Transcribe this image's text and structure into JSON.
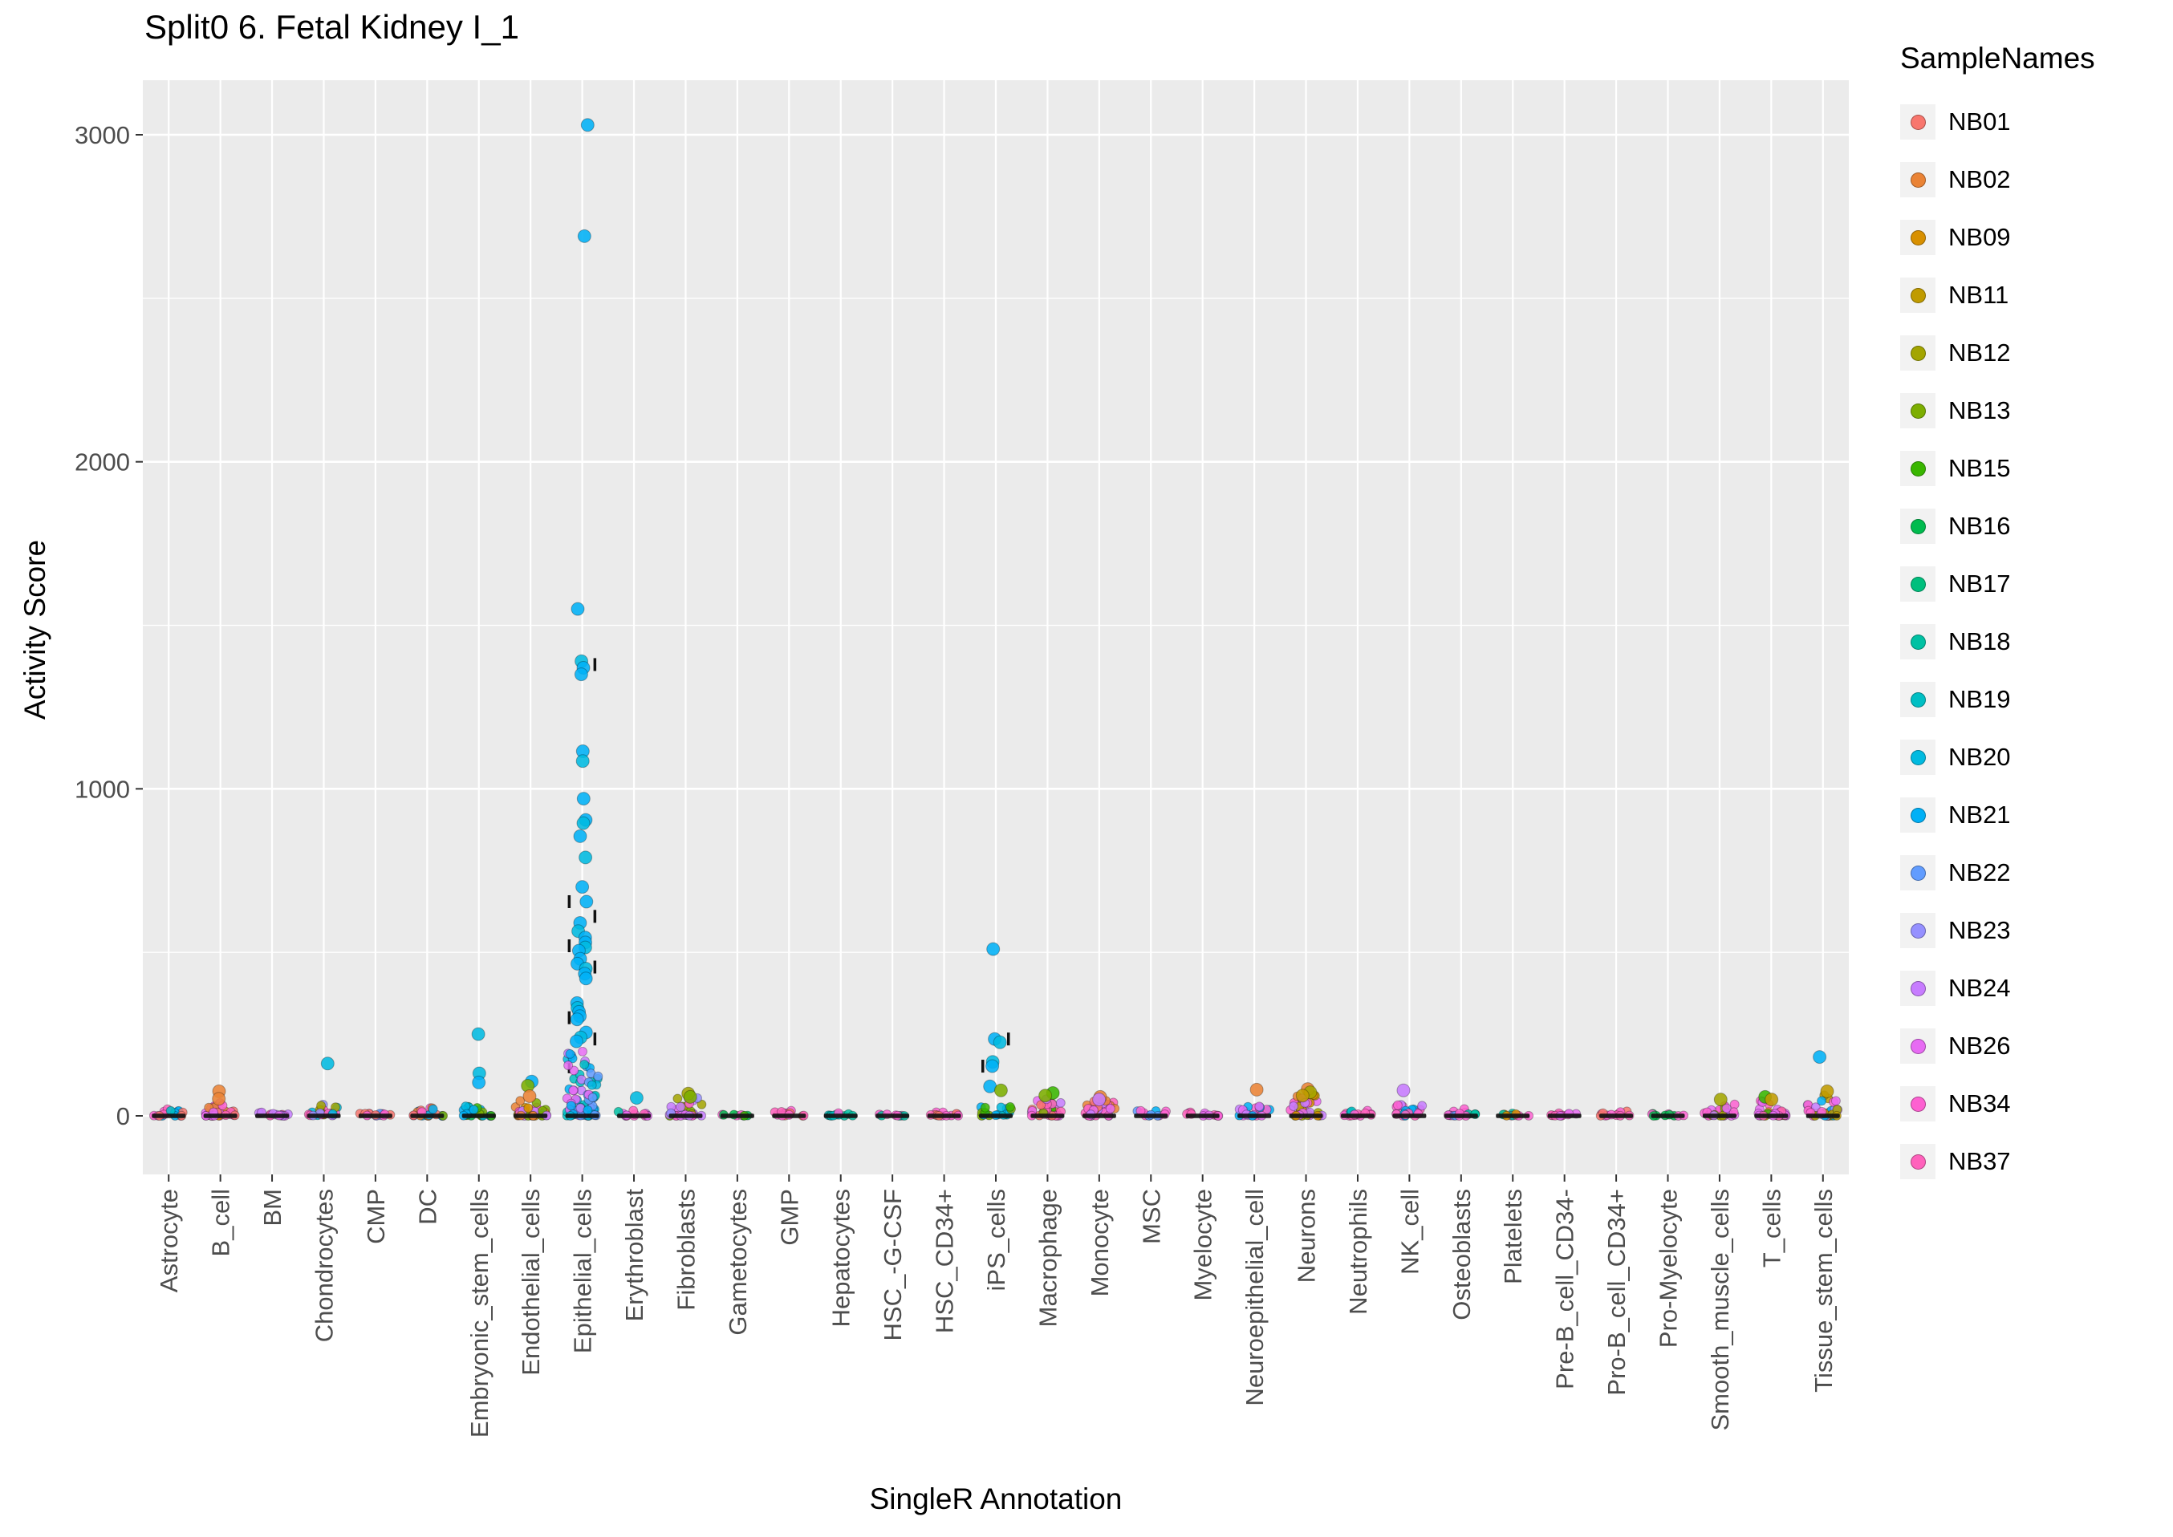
{
  "title": "Split0 6. Fetal Kidney I_1",
  "axes": {
    "x_title": "SingleR Annotation",
    "y_title": "Activity Score",
    "y_ticks": [
      0,
      1000,
      2000,
      3000
    ],
    "y_minor": [
      500,
      1500,
      2500
    ]
  },
  "legend": {
    "title": "SampleNames",
    "entries": [
      {
        "label": "NB01",
        "color": "#F8766D"
      },
      {
        "label": "NB02",
        "color": "#EA8335"
      },
      {
        "label": "NB09",
        "color": "#D89000"
      },
      {
        "label": "NB11",
        "color": "#C09B00"
      },
      {
        "label": "NB12",
        "color": "#A3A500"
      },
      {
        "label": "NB13",
        "color": "#7CAE00"
      },
      {
        "label": "NB15",
        "color": "#39B600"
      },
      {
        "label": "NB16",
        "color": "#00BB4E"
      },
      {
        "label": "NB17",
        "color": "#00BF7D"
      },
      {
        "label": "NB18",
        "color": "#00C1A3"
      },
      {
        "label": "NB19",
        "color": "#00BFC4"
      },
      {
        "label": "NB20",
        "color": "#00BAE0"
      },
      {
        "label": "NB21",
        "color": "#00B0F6"
      },
      {
        "label": "NB22",
        "color": "#619CFF"
      },
      {
        "label": "NB23",
        "color": "#9590FF"
      },
      {
        "label": "NB24",
        "color": "#C77CFF"
      },
      {
        "label": "NB26",
        "color": "#E76BF3"
      },
      {
        "label": "NB34",
        "color": "#FD61D1"
      },
      {
        "label": "NB37",
        "color": "#FF62BC"
      }
    ]
  },
  "panel": {
    "bg": "#EBEBEB",
    "grid": "#FFFFFF"
  },
  "chart_data": {
    "type": "scatter",
    "title": "Split0 6. Fetal Kidney I_1",
    "xlabel": "SingleR Annotation",
    "ylabel": "Activity Score",
    "ylim": [
      0,
      3030
    ],
    "y_ticks": [
      0,
      1000,
      2000,
      3000
    ],
    "legend_title": "SampleNames",
    "categories": [
      {
        "label": "Astrocyte",
        "cluster": {
          "n": 18,
          "max": 22,
          "samples": [
            "NB01",
            "NB34",
            "NB37",
            "NB19",
            "NB21",
            "NB17"
          ]
        },
        "outliers": [],
        "ticks": []
      },
      {
        "label": "B_cell",
        "cluster": {
          "n": 30,
          "max": 40,
          "samples": [
            "NB01",
            "NB02",
            "NB34",
            "NB37",
            "NB26",
            "NB09"
          ]
        },
        "outliers": [
          {
            "sample": "NB02",
            "y": 75
          },
          {
            "sample": "NB02",
            "y": 52
          }
        ],
        "ticks": []
      },
      {
        "label": "BM",
        "cluster": {
          "n": 14,
          "max": 12,
          "samples": [
            "NB26",
            "NB34",
            "NB37",
            "NB24"
          ]
        },
        "outliers": [],
        "ticks": []
      },
      {
        "label": "Chondrocytes",
        "cluster": {
          "n": 24,
          "max": 42,
          "samples": [
            "NB23",
            "NB24",
            "NB34",
            "NB37",
            "NB12",
            "NB20"
          ]
        },
        "outliers": [
          {
            "sample": "NB20",
            "y": 160
          }
        ],
        "ticks": []
      },
      {
        "label": "CMP",
        "cluster": {
          "n": 14,
          "max": 12,
          "samples": [
            "NB22",
            "NB23",
            "NB34",
            "NB01"
          ]
        },
        "outliers": [],
        "ticks": []
      },
      {
        "label": "DC",
        "cluster": {
          "n": 20,
          "max": 26,
          "samples": [
            "NB01",
            "NB02",
            "NB34",
            "NB21",
            "NB13"
          ]
        },
        "outliers": [],
        "ticks": []
      },
      {
        "label": "Embryonic_stem_cells",
        "cluster": {
          "n": 22,
          "max": 30,
          "samples": [
            "NB13",
            "NB15",
            "NB20",
            "NB21",
            "NB16"
          ]
        },
        "outliers": [
          {
            "sample": "NB20",
            "y": 250
          },
          {
            "sample": "NB20",
            "y": 130
          },
          {
            "sample": "NB21",
            "y": 102
          }
        ],
        "ticks": []
      },
      {
        "label": "Endothelial_cells",
        "cluster": {
          "n": 30,
          "max": 48,
          "samples": [
            "NB02",
            "NB09",
            "NB13",
            "NB21",
            "NB34",
            "NB24"
          ]
        },
        "outliers": [
          {
            "sample": "NB21",
            "y": 105
          },
          {
            "sample": "NB13",
            "y": 92
          },
          {
            "sample": "NB02",
            "y": 60
          }
        ],
        "ticks": []
      },
      {
        "label": "Epithelial_cells",
        "cluster": {
          "n": 80,
          "max": 200,
          "samples": [
            "NB21",
            "NB21",
            "NB21",
            "NB20",
            "NB19",
            "NB22",
            "NB24",
            "NB26"
          ]
        },
        "outliers": [
          {
            "sample": "NB21",
            "y": 3030
          },
          {
            "sample": "NB21",
            "y": 2690
          },
          {
            "sample": "NB21",
            "y": 1550
          },
          {
            "sample": "NB20",
            "y": 1390
          },
          {
            "sample": "NB21",
            "y": 1370
          },
          {
            "sample": "NB21",
            "y": 1350
          },
          {
            "sample": "NB21",
            "y": 1115
          },
          {
            "sample": "NB20",
            "y": 1085
          },
          {
            "sample": "NB21",
            "y": 970
          },
          {
            "sample": "NB21",
            "y": 905
          },
          {
            "sample": "NB20",
            "y": 895
          },
          {
            "sample": "NB21",
            "y": 855
          },
          {
            "sample": "NB20",
            "y": 790
          },
          {
            "sample": "NB21",
            "y": 700
          },
          {
            "sample": "NB21",
            "y": 655
          },
          {
            "sample": "NB21",
            "y": 590
          },
          {
            "sample": "NB20",
            "y": 565
          },
          {
            "sample": "NB21",
            "y": 545
          },
          {
            "sample": "NB21",
            "y": 530
          },
          {
            "sample": "NB20",
            "y": 515
          },
          {
            "sample": "NB21",
            "y": 505
          },
          {
            "sample": "NB21",
            "y": 480
          },
          {
            "sample": "NB21",
            "y": 465
          },
          {
            "sample": "NB20",
            "y": 450
          },
          {
            "sample": "NB21",
            "y": 435
          },
          {
            "sample": "NB21",
            "y": 420
          },
          {
            "sample": "NB21",
            "y": 345
          },
          {
            "sample": "NB20",
            "y": 330
          },
          {
            "sample": "NB21",
            "y": 318
          },
          {
            "sample": "NB21",
            "y": 305
          },
          {
            "sample": "NB21",
            "y": 295
          },
          {
            "sample": "NB21",
            "y": 255
          },
          {
            "sample": "NB20",
            "y": 240
          },
          {
            "sample": "NB21",
            "y": 228
          }
        ],
        "ticks": [
          1380,
          655,
          610,
          520,
          455,
          300,
          235,
          150
        ]
      },
      {
        "label": "Erythroblast",
        "cluster": {
          "n": 14,
          "max": 18,
          "samples": [
            "NB34",
            "NB37",
            "NB26",
            "NB18"
          ]
        },
        "outliers": [
          {
            "sample": "NB20",
            "y": 55
          }
        ],
        "ticks": []
      },
      {
        "label": "Fibroblasts",
        "cluster": {
          "n": 30,
          "max": 55,
          "samples": [
            "NB23",
            "NB24",
            "NB12",
            "NB13",
            "NB34",
            "NB26"
          ]
        },
        "outliers": [
          {
            "sample": "NB12",
            "y": 68
          },
          {
            "sample": "NB13",
            "y": 58
          }
        ],
        "ticks": []
      },
      {
        "label": "Gametocytes",
        "cluster": {
          "n": 8,
          "max": 8,
          "samples": [
            "NB15",
            "NB16",
            "NB34"
          ]
        },
        "outliers": [],
        "ticks": []
      },
      {
        "label": "GMP",
        "cluster": {
          "n": 14,
          "max": 16,
          "samples": [
            "NB01",
            "NB34",
            "NB37"
          ]
        },
        "outliers": [],
        "ticks": []
      },
      {
        "label": "Hepatocytes",
        "cluster": {
          "n": 10,
          "max": 10,
          "samples": [
            "NB18",
            "NB19",
            "NB34"
          ]
        },
        "outliers": [],
        "ticks": []
      },
      {
        "label": "HSC_-G-CSF",
        "cluster": {
          "n": 8,
          "max": 8,
          "samples": [
            "NB18",
            "NB34"
          ]
        },
        "outliers": [],
        "ticks": []
      },
      {
        "label": "HSC_CD34+",
        "cluster": {
          "n": 12,
          "max": 12,
          "samples": [
            "NB01",
            "NB34",
            "NB37"
          ]
        },
        "outliers": [],
        "ticks": []
      },
      {
        "label": "iPS_cells",
        "cluster": {
          "n": 20,
          "max": 28,
          "samples": [
            "NB13",
            "NB15",
            "NB20",
            "NB21"
          ]
        },
        "outliers": [
          {
            "sample": "NB21",
            "y": 510
          },
          {
            "sample": "NB21",
            "y": 235
          },
          {
            "sample": "NB20",
            "y": 225
          },
          {
            "sample": "NB20",
            "y": 165
          },
          {
            "sample": "NB21",
            "y": 152
          },
          {
            "sample": "NB21",
            "y": 90
          },
          {
            "sample": "NB13",
            "y": 78
          }
        ],
        "ticks": [
          235,
          152
        ]
      },
      {
        "label": "Macrophage",
        "cluster": {
          "n": 34,
          "max": 55,
          "samples": [
            "NB01",
            "NB34",
            "NB37",
            "NB26",
            "NB15",
            "NB13",
            "NB24"
          ]
        },
        "outliers": [
          {
            "sample": "NB15",
            "y": 70
          },
          {
            "sample": "NB13",
            "y": 62
          }
        ],
        "ticks": []
      },
      {
        "label": "Monocyte",
        "cluster": {
          "n": 34,
          "max": 48,
          "samples": [
            "NB01",
            "NB02",
            "NB34",
            "NB37",
            "NB24",
            "NB26"
          ]
        },
        "outliers": [
          {
            "sample": "NB02",
            "y": 58
          },
          {
            "sample": "NB24",
            "y": 50
          }
        ],
        "ticks": []
      },
      {
        "label": "MSC",
        "cluster": {
          "n": 12,
          "max": 18,
          "samples": [
            "NB21",
            "NB22",
            "NB34"
          ]
        },
        "outliers": [],
        "ticks": []
      },
      {
        "label": "Myelocyte",
        "cluster": {
          "n": 12,
          "max": 12,
          "samples": [
            "NB34",
            "NB37",
            "NB26"
          ]
        },
        "outliers": [],
        "ticks": []
      },
      {
        "label": "Neuroepithelial_cell",
        "cluster": {
          "n": 18,
          "max": 30,
          "samples": [
            "NB24",
            "NB26",
            "NB34",
            "NB21"
          ]
        },
        "outliers": [
          {
            "sample": "NB02",
            "y": 80
          }
        ],
        "ticks": []
      },
      {
        "label": "Neurons",
        "cluster": {
          "n": 34,
          "max": 70,
          "samples": [
            "NB02",
            "NB09",
            "NB11",
            "NB12",
            "NB34",
            "NB26",
            "NB24"
          ]
        },
        "outliers": [
          {
            "sample": "NB02",
            "y": 82
          },
          {
            "sample": "NB12",
            "y": 72
          },
          {
            "sample": "NB11",
            "y": 62
          }
        ],
        "ticks": []
      },
      {
        "label": "Neutrophils",
        "cluster": {
          "n": 14,
          "max": 16,
          "samples": [
            "NB19",
            "NB34",
            "NB37"
          ]
        },
        "outliers": [],
        "ticks": []
      },
      {
        "label": "NK_cell",
        "cluster": {
          "n": 20,
          "max": 35,
          "samples": [
            "NB24",
            "NB34",
            "NB37",
            "NB21"
          ]
        },
        "outliers": [
          {
            "sample": "NB24",
            "y": 78
          }
        ],
        "ticks": []
      },
      {
        "label": "Osteoblasts",
        "cluster": {
          "n": 14,
          "max": 25,
          "samples": [
            "NB22",
            "NB23",
            "NB18",
            "NB34"
          ]
        },
        "outliers": [],
        "ticks": []
      },
      {
        "label": "Platelets",
        "cluster": {
          "n": 10,
          "max": 8,
          "samples": [
            "NB09",
            "NB34",
            "NB18"
          ]
        },
        "outliers": [],
        "ticks": []
      },
      {
        "label": "Pre-B_cell_CD34-",
        "cluster": {
          "n": 12,
          "max": 10,
          "samples": [
            "NB34",
            "NB37",
            "NB26"
          ]
        },
        "outliers": [],
        "ticks": []
      },
      {
        "label": "Pro-B_cell_CD34+",
        "cluster": {
          "n": 12,
          "max": 14,
          "samples": [
            "NB01",
            "NB34",
            "NB37"
          ]
        },
        "outliers": [],
        "ticks": []
      },
      {
        "label": "Pro-Myelocyte",
        "cluster": {
          "n": 10,
          "max": 8,
          "samples": [
            "NB34",
            "NB16"
          ]
        },
        "outliers": [],
        "ticks": []
      },
      {
        "label": "Smooth_muscle_cells",
        "cluster": {
          "n": 24,
          "max": 40,
          "samples": [
            "NB12",
            "NB13",
            "NB34",
            "NB26",
            "NB24"
          ]
        },
        "outliers": [
          {
            "sample": "NB12",
            "y": 50
          }
        ],
        "ticks": []
      },
      {
        "label": "T_cells",
        "cluster": {
          "n": 30,
          "max": 48,
          "samples": [
            "NB15",
            "NB11",
            "NB02",
            "NB34",
            "NB37",
            "NB26"
          ]
        },
        "outliers": [
          {
            "sample": "NB15",
            "y": 58
          },
          {
            "sample": "NB11",
            "y": 50
          }
        ],
        "ticks": []
      },
      {
        "label": "Tissue_stem_cells",
        "cluster": {
          "n": 34,
          "max": 65,
          "samples": [
            "NB23",
            "NB24",
            "NB26",
            "NB34",
            "NB21",
            "NB11",
            "NB12"
          ]
        },
        "outliers": [
          {
            "sample": "NB21",
            "y": 180
          },
          {
            "sample": "NB11",
            "y": 75
          }
        ],
        "ticks": []
      }
    ]
  }
}
